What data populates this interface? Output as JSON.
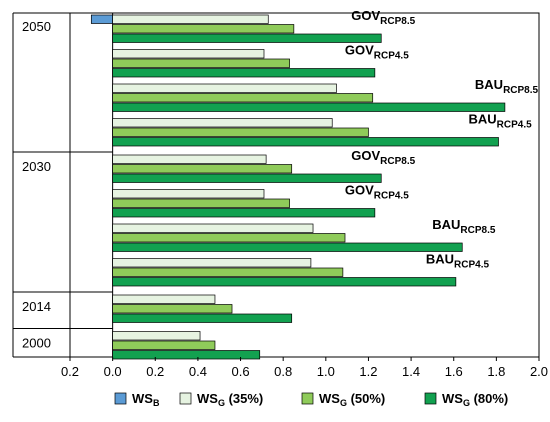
{
  "chart_data": {
    "type": "bar",
    "orientation": "horizontal",
    "xlim": [
      -0.2,
      2.0
    ],
    "x_ticks": [
      "0.2",
      "0.0",
      "0.2",
      "0.4",
      "0.6",
      "0.8",
      "1.0",
      "1.2",
      "1.4",
      "1.6",
      "1.8",
      "2.0"
    ],
    "x_tick_values": [
      -0.2,
      0.0,
      0.2,
      0.4,
      0.6,
      0.8,
      1.0,
      1.2,
      1.4,
      1.6,
      1.8,
      2.0
    ],
    "colors": {
      "WS_B": "#5b9bd5",
      "WS_G_35": "#e6f3e1",
      "WS_G_50": "#8fcb5a",
      "WS_G_80": "#12a150"
    },
    "legend": [
      {
        "key": "WS_B",
        "main": "WS",
        "sub": "B",
        "rest": ""
      },
      {
        "key": "WS_G_35",
        "main": "WS",
        "sub": "G",
        "rest": " (35%)"
      },
      {
        "key": "WS_G_50",
        "main": "WS",
        "sub": "G",
        "rest": " (50%)"
      },
      {
        "key": "WS_G_80",
        "main": "WS",
        "sub": "G",
        "rest": " (80%)"
      }
    ],
    "legend_position": "bottom",
    "year_groups": [
      {
        "year": "2050",
        "scenarios": [
          {
            "main": "GOV",
            "sub": "RCP8.5",
            "WS_B": -0.1,
            "WS_G_35": 0.73,
            "WS_G_50": 0.85,
            "WS_G_80": 1.26
          },
          {
            "main": "GOV",
            "sub": "RCP4.5",
            "WS_B": 0.0,
            "WS_G_35": 0.71,
            "WS_G_50": 0.83,
            "WS_G_80": 1.23
          },
          {
            "main": "BAU",
            "sub": "RCP8.5",
            "WS_B": 0.0,
            "WS_G_35": 1.05,
            "WS_G_50": 1.22,
            "WS_G_80": 1.84
          },
          {
            "main": "BAU",
            "sub": "RCP4.5",
            "WS_B": 0.0,
            "WS_G_35": 1.03,
            "WS_G_50": 1.2,
            "WS_G_80": 1.81
          }
        ]
      },
      {
        "year": "2030",
        "scenarios": [
          {
            "main": "GOV",
            "sub": "RCP8.5",
            "WS_B": 0.0,
            "WS_G_35": 0.72,
            "WS_G_50": 0.84,
            "WS_G_80": 1.26
          },
          {
            "main": "GOV",
            "sub": "RCP4.5",
            "WS_B": 0.0,
            "WS_G_35": 0.71,
            "WS_G_50": 0.83,
            "WS_G_80": 1.23
          },
          {
            "main": "BAU",
            "sub": "RCP8.5",
            "WS_B": 0.0,
            "WS_G_35": 0.94,
            "WS_G_50": 1.09,
            "WS_G_80": 1.64
          },
          {
            "main": "BAU",
            "sub": "RCP4.5",
            "WS_B": 0.0,
            "WS_G_35": 0.93,
            "WS_G_50": 1.08,
            "WS_G_80": 1.61
          }
        ]
      },
      {
        "year": "2014",
        "scenarios": [
          {
            "main": "",
            "sub": "",
            "WS_B": 0.0,
            "WS_G_35": 0.48,
            "WS_G_50": 0.56,
            "WS_G_80": 0.84
          }
        ]
      },
      {
        "year": "2000",
        "scenarios": [
          {
            "main": "",
            "sub": "",
            "WS_B": 0.0,
            "WS_G_35": 0.41,
            "WS_G_50": 0.48,
            "WS_G_80": 0.69
          }
        ]
      }
    ]
  }
}
